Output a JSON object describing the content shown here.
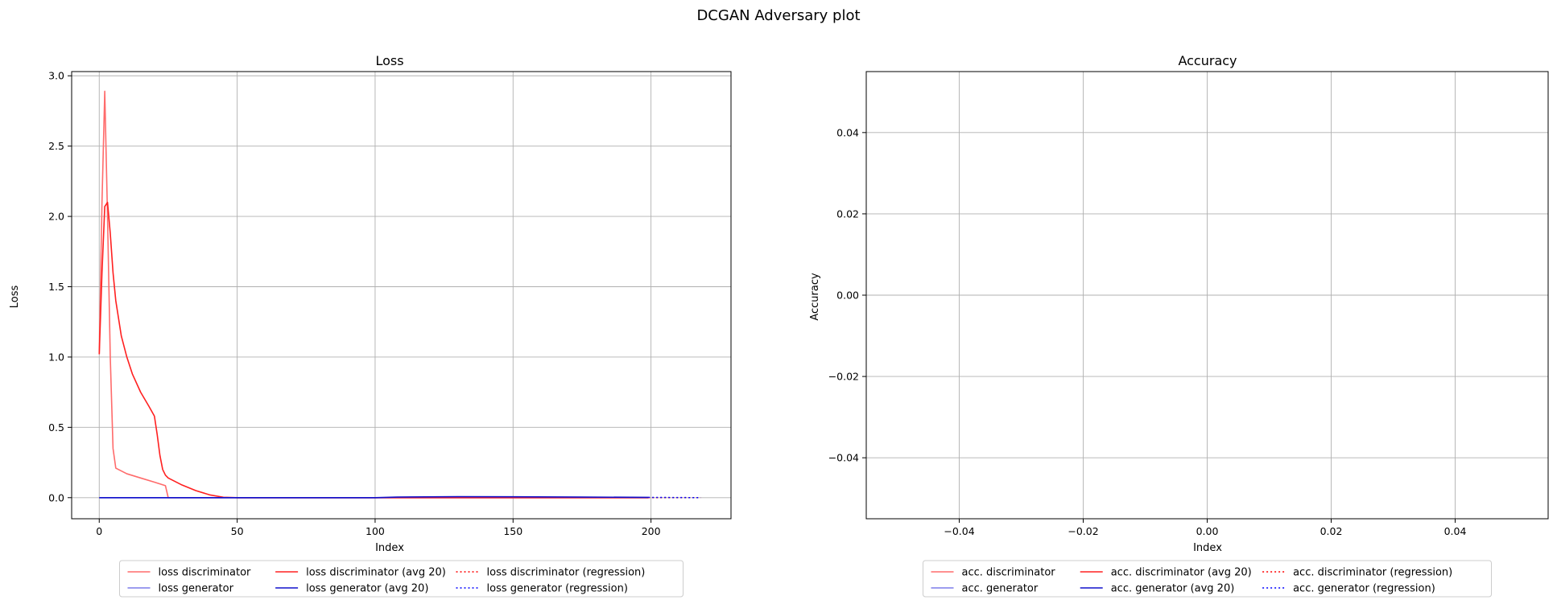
{
  "figure": {
    "title": "DCGAN Adversary plot"
  },
  "chart_data": [
    {
      "type": "line",
      "title": "Loss",
      "xlabel": "Index",
      "ylabel": "Loss",
      "xlim": [
        -10,
        229
      ],
      "ylim": [
        -0.15,
        3.03
      ],
      "xticks": [
        0,
        50,
        100,
        150,
        200
      ],
      "xtick_labels": [
        "0",
        "50",
        "100",
        "150",
        "200"
      ],
      "yticks": [
        0.0,
        0.5,
        1.0,
        1.5,
        2.0,
        2.5,
        3.0
      ],
      "ytick_labels": [
        "0.0",
        "0.5",
        "1.0",
        "1.5",
        "2.0",
        "2.5",
        "3.0"
      ],
      "grid": true,
      "legend_placement": "bottom-center",
      "legend_columns": 3,
      "series": [
        {
          "name": "loss discriminator",
          "color": "#ff6b6b",
          "style": "solid",
          "x": [
            0,
            1,
            2,
            3,
            4,
            5,
            6,
            10,
            15,
            20,
            24,
            25,
            26,
            30,
            40,
            50,
            100,
            150,
            199
          ],
          "y": [
            1.02,
            2.1,
            2.89,
            2.0,
            1.0,
            0.35,
            0.21,
            0.17,
            0.14,
            0.11,
            0.085,
            0.0,
            0.0,
            0.0,
            0.0,
            0.0,
            0.0,
            0.0,
            0.0
          ]
        },
        {
          "name": "loss generator",
          "color": "#7b7bea",
          "style": "solid",
          "x": [
            0,
            50,
            100,
            150,
            199
          ],
          "y": [
            0.0,
            0.0,
            0.0,
            0.0,
            0.0
          ]
        },
        {
          "name": "loss discriminator (avg 20)",
          "color": "#ff2020",
          "style": "solid",
          "x": [
            0,
            1,
            2,
            3,
            4,
            5,
            6,
            8,
            10,
            12,
            15,
            18,
            20,
            21,
            22,
            23,
            24,
            25,
            30,
            35,
            40,
            45,
            50,
            100,
            150,
            199
          ],
          "y": [
            1.02,
            1.6,
            2.07,
            2.1,
            1.88,
            1.6,
            1.4,
            1.15,
            1.0,
            0.88,
            0.75,
            0.65,
            0.58,
            0.45,
            0.3,
            0.2,
            0.16,
            0.14,
            0.09,
            0.05,
            0.02,
            0.003,
            0.0,
            0.0,
            0.0,
            0.0
          ]
        },
        {
          "name": "loss generator (avg 20)",
          "color": "#1010cc",
          "style": "solid",
          "x": [
            0,
            50,
            100,
            108,
            130,
            150,
            175,
            199
          ],
          "y": [
            0.0,
            0.0,
            0.0,
            0.004,
            0.007,
            0.006,
            0.004,
            0.002
          ]
        },
        {
          "name": "loss discriminator (regression)",
          "color": "#ff0000",
          "style": "dotted",
          "x": [
            199,
            218
          ],
          "y": [
            0.0,
            0.0
          ]
        },
        {
          "name": "loss generator (regression)",
          "color": "#0000ff",
          "style": "dotted",
          "x": [
            199,
            218
          ],
          "y": [
            0.002,
            0.0
          ]
        }
      ]
    },
    {
      "type": "line",
      "title": "Accuracy",
      "xlabel": "Index",
      "ylabel": "Accuracy",
      "xlim": [
        -0.055,
        0.055
      ],
      "ylim": [
        -0.055,
        0.055
      ],
      "xticks": [
        -0.04,
        -0.02,
        0.0,
        0.02,
        0.04
      ],
      "xtick_labels": [
        "−0.04",
        "−0.02",
        "0.00",
        "0.02",
        "0.04"
      ],
      "yticks": [
        -0.04,
        -0.02,
        0.0,
        0.02,
        0.04
      ],
      "ytick_labels": [
        "−0.04",
        "−0.02",
        "0.00",
        "0.02",
        "0.04"
      ],
      "grid": true,
      "legend_placement": "bottom-center",
      "legend_columns": 3,
      "series": [
        {
          "name": "acc. discriminator",
          "color": "#ff6b6b",
          "style": "solid",
          "x": [],
          "y": []
        },
        {
          "name": "acc. generator",
          "color": "#7b7bea",
          "style": "solid",
          "x": [],
          "y": []
        },
        {
          "name": "acc. discriminator (avg 20)",
          "color": "#ff2020",
          "style": "solid",
          "x": [],
          "y": []
        },
        {
          "name": "acc. generator (avg 20)",
          "color": "#1010cc",
          "style": "solid",
          "x": [],
          "y": []
        },
        {
          "name": "acc. discriminator (regression)",
          "color": "#ff0000",
          "style": "dotted",
          "x": [],
          "y": []
        },
        {
          "name": "acc. generator (regression)",
          "color": "#0000ff",
          "style": "dotted",
          "x": [],
          "y": []
        }
      ]
    }
  ]
}
